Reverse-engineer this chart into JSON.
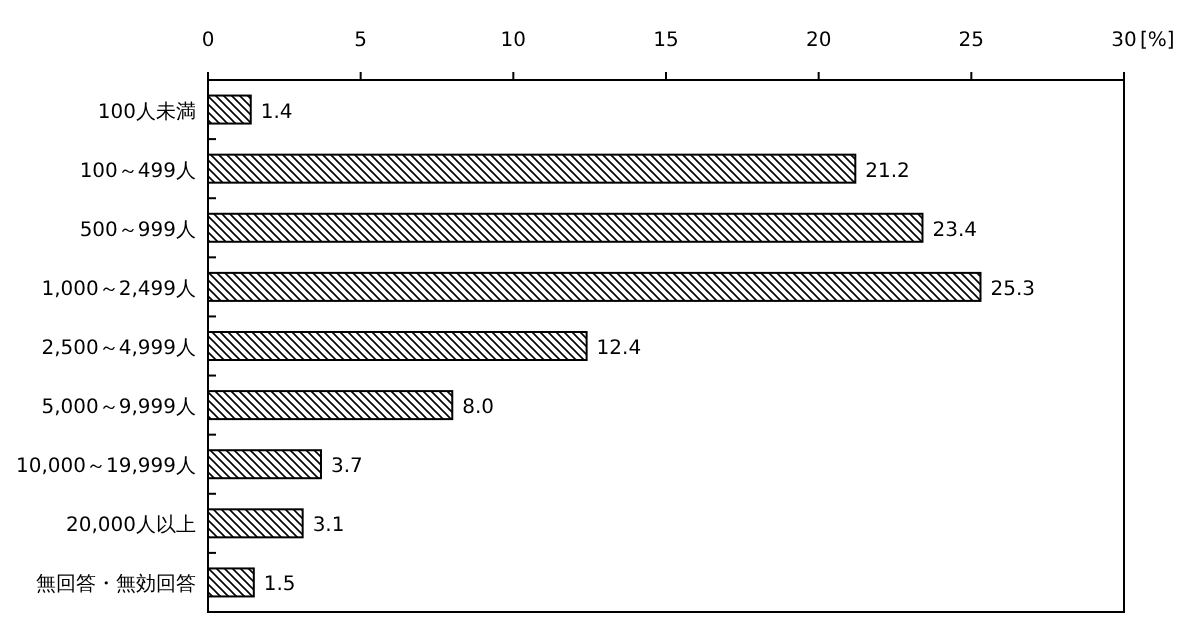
{
  "chart_data": {
    "type": "bar",
    "orientation": "horizontal",
    "xlabel": "[%]",
    "categories": [
      "100人未満",
      "100～499人",
      "500～999人",
      "1,000～2,499人",
      "2,500～4,999人",
      "5,000～9,999人",
      "10,000～19,999人",
      "20,000人以上",
      "無回答・無効回答"
    ],
    "values": [
      1.4,
      21.2,
      23.4,
      25.3,
      12.4,
      8.0,
      3.7,
      3.1,
      1.5
    ],
    "value_labels": [
      "1.4",
      "21.2",
      "23.4",
      "25.3",
      "12.4",
      "8.0",
      "3.7",
      "3.1",
      "1.5"
    ],
    "color": "#000000",
    "xlim": [
      0,
      30
    ],
    "xticks": [
      0,
      5,
      10,
      15,
      20,
      25,
      30
    ],
    "grid": false
  }
}
